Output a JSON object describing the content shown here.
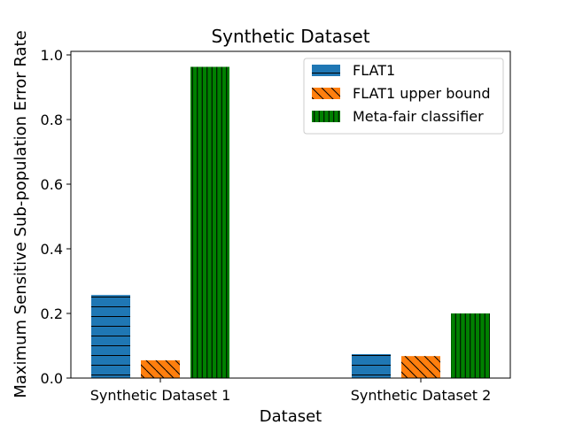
{
  "chart_data": {
    "type": "bar",
    "title": "Synthetic Dataset",
    "xlabel": "Dataset",
    "ylabel": "Maximum Sensitive Sub-population Error Rate",
    "categories": [
      "Synthetic Dataset 1",
      "Synthetic Dataset 2"
    ],
    "ylim": [
      0,
      1.0
    ],
    "yticks": [
      "0.0",
      "0.2",
      "0.4",
      "0.6",
      "0.8",
      "1.0"
    ],
    "ytick_values": [
      0,
      0.2,
      0.4,
      0.6,
      0.8,
      1.0
    ],
    "grid": false,
    "legend_position": "top-right",
    "series": [
      {
        "name": "FLAT1",
        "values": [
          0.257,
          0.074
        ],
        "color": "#1f77b4",
        "hatch": "horizontal"
      },
      {
        "name": "FLAT1 upper bound",
        "values": [
          0.055,
          0.068
        ],
        "color": "#ff7f0e",
        "hatch": "diagonal"
      },
      {
        "name": "Meta-fair classifier",
        "values": [
          0.963,
          0.2
        ],
        "color": "#008000",
        "hatch": "vertical"
      }
    ]
  }
}
